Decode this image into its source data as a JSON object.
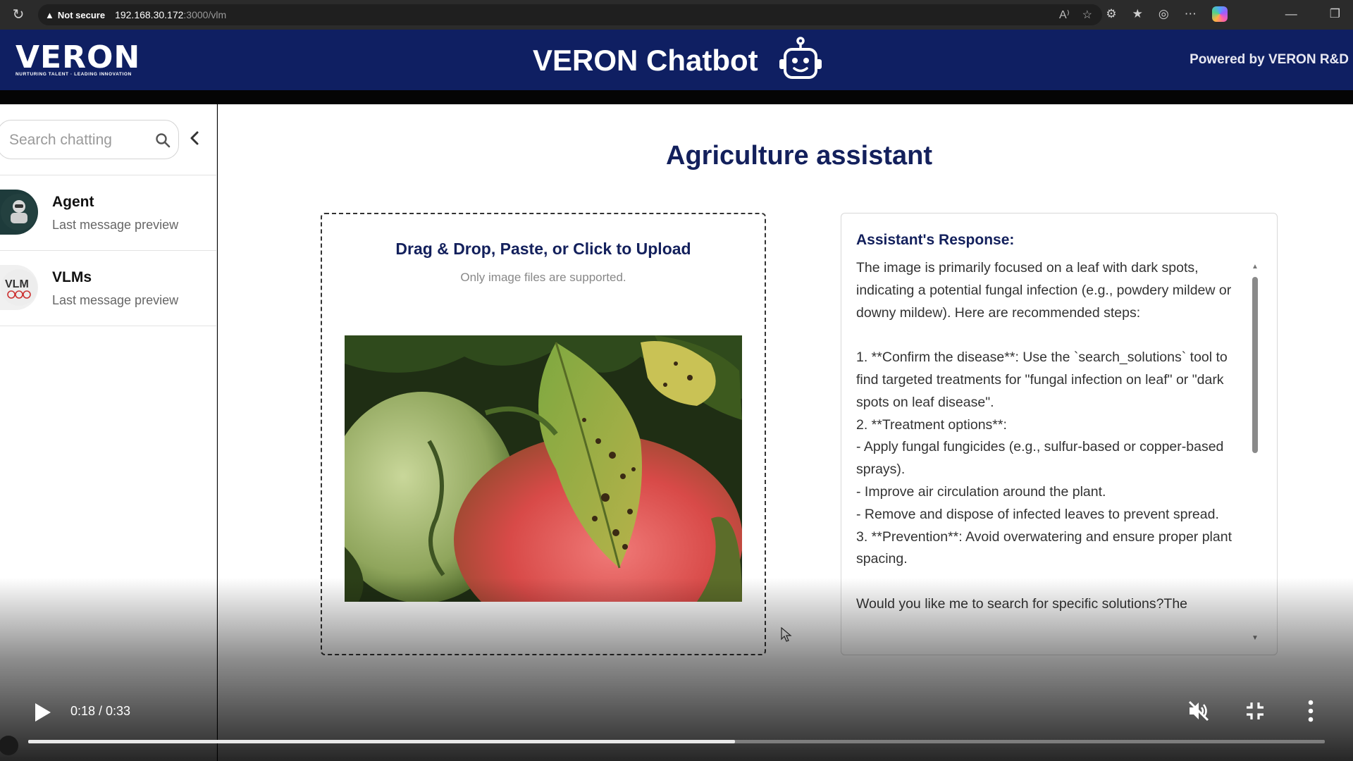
{
  "browser": {
    "security_label": "Not secure",
    "url_host": "192.168.30.172",
    "url_path": ":3000/vlm"
  },
  "header": {
    "logo_text": "VERON",
    "logo_tagline": "NURTURING TALENT · LEADING INNOVATION",
    "title": "VERON Chatbot",
    "powered_by": "Powered by VERON R&D",
    "brand_color": "#0f1f62"
  },
  "sidebar": {
    "search_placeholder": "Search chatting",
    "chats": [
      {
        "name": "Agent",
        "preview": "Last message preview"
      },
      {
        "name": "VLMs",
        "preview": "Last message preview"
      }
    ]
  },
  "main": {
    "title": "Agriculture assistant",
    "upload": {
      "title": "Drag & Drop, Paste, or Click to Upload",
      "hint": "Only image files are supported."
    },
    "response": {
      "label": "Assistant's Response:",
      "text": "The image is primarily focused on a leaf with dark spots, indicating a potential fungal infection (e.g., powdery mildew or downy mildew). Here are recommended steps:\n\n1. **Confirm the disease**: Use the `search_solutions` tool to find targeted treatments for \"fungal infection on leaf\" or \"dark spots on leaf disease\".\n2. **Treatment options**:\n- Apply fungal fungicides (e.g., sulfur-based or copper-based sprays).\n- Improve air circulation around the plant.\n- Remove and dispose of infected leaves to prevent spread.\n3. **Prevention**: Avoid overwatering and ensure proper plant spacing.\n\nWould you like me to search for specific solutions?The"
    }
  },
  "video": {
    "time": "0:18 / 0:33",
    "progress": 0.545
  }
}
